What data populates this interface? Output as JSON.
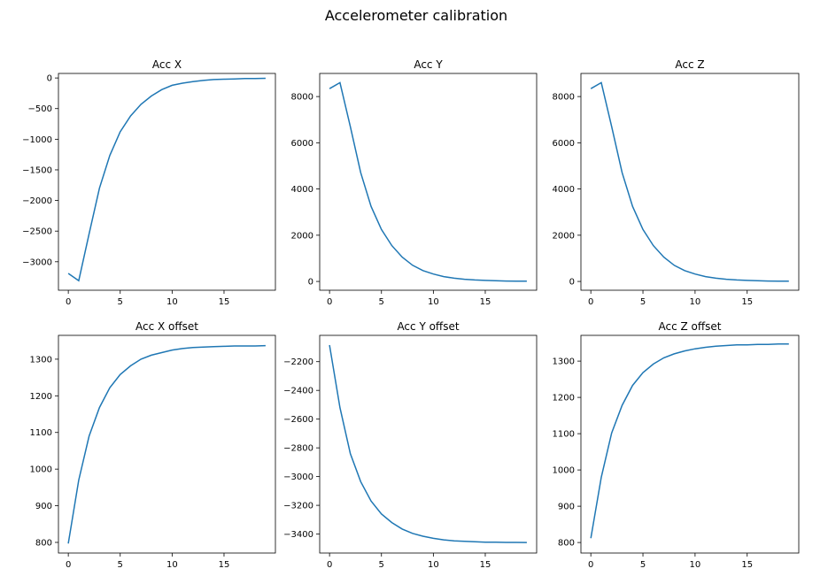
{
  "chart_data": {
    "title": "Accelerometer calibration",
    "line_color": "#1f77b4",
    "subplots": [
      {
        "type": "line",
        "title": "Acc X",
        "xlim": [
          -0.95,
          19.95
        ],
        "ylim": [
          -3465,
          74
        ],
        "xticks": [
          0,
          5,
          10,
          15
        ],
        "yticks": [
          0,
          -500,
          -1000,
          -1500,
          -2000,
          -2500,
          -3000
        ],
        "x": [
          0,
          1,
          2,
          3,
          4,
          5,
          6,
          7,
          8,
          9,
          10,
          11,
          12,
          13,
          14,
          15,
          16,
          17,
          18,
          19
        ],
        "y": [
          -3190,
          -3310,
          -2545,
          -1800,
          -1265,
          -880,
          -620,
          -430,
          -295,
          -190,
          -120,
          -85,
          -60,
          -40,
          -25,
          -20,
          -15,
          -10,
          -8,
          -5
        ]
      },
      {
        "type": "line",
        "title": "Acc Y",
        "xlim": [
          -0.95,
          19.95
        ],
        "ylim": [
          -380,
          9000
        ],
        "xticks": [
          0,
          5,
          10,
          15
        ],
        "yticks": [
          0,
          2000,
          4000,
          6000,
          8000
        ],
        "x": [
          0,
          1,
          2,
          3,
          4,
          5,
          6,
          7,
          8,
          9,
          10,
          11,
          12,
          13,
          14,
          15,
          16,
          17,
          18,
          19
        ],
        "y": [
          8340,
          8600,
          6700,
          4710,
          3250,
          2250,
          1550,
          1050,
          700,
          470,
          320,
          210,
          140,
          95,
          65,
          45,
          30,
          20,
          15,
          10
        ]
      },
      {
        "type": "line",
        "title": "Acc Z",
        "xlim": [
          -0.95,
          19.95
        ],
        "ylim": [
          -380,
          9000
        ],
        "xticks": [
          0,
          5,
          10,
          15
        ],
        "yticks": [
          0,
          2000,
          4000,
          6000,
          8000
        ],
        "x": [
          0,
          1,
          2,
          3,
          4,
          5,
          6,
          7,
          8,
          9,
          10,
          11,
          12,
          13,
          14,
          15,
          16,
          17,
          18,
          19
        ],
        "y": [
          8340,
          8600,
          6700,
          4710,
          3250,
          2250,
          1550,
          1050,
          700,
          470,
          320,
          210,
          140,
          95,
          65,
          45,
          30,
          20,
          15,
          10
        ]
      },
      {
        "type": "line",
        "title": "Acc X offset",
        "xlim": [
          -0.95,
          19.95
        ],
        "ylim": [
          771,
          1365
        ],
        "xticks": [
          0,
          5,
          10,
          15
        ],
        "yticks": [
          800,
          900,
          1000,
          1100,
          1200,
          1300
        ],
        "x": [
          0,
          1,
          2,
          3,
          4,
          5,
          6,
          7,
          8,
          9,
          10,
          11,
          12,
          13,
          14,
          15,
          16,
          17,
          18,
          19
        ],
        "y": [
          797,
          970,
          1090,
          1168,
          1222,
          1258,
          1282,
          1300,
          1311,
          1318,
          1325,
          1329,
          1332,
          1333,
          1334,
          1335,
          1336,
          1336,
          1336,
          1337
        ]
      },
      {
        "type": "line",
        "title": "Acc Y offset",
        "xlim": [
          -0.95,
          19.95
        ],
        "ylim": [
          -3532,
          -2017
        ],
        "xticks": [
          0,
          5,
          10,
          15
        ],
        "yticks": [
          -2200,
          -2400,
          -2600,
          -2800,
          -3000,
          -3200,
          -3400
        ],
        "x": [
          0,
          1,
          2,
          3,
          4,
          5,
          6,
          7,
          8,
          9,
          10,
          11,
          12,
          13,
          14,
          15,
          16,
          17,
          18,
          19
        ],
        "y": [
          -2085,
          -2520,
          -2840,
          -3035,
          -3170,
          -3260,
          -3320,
          -3365,
          -3395,
          -3415,
          -3430,
          -3440,
          -3447,
          -3451,
          -3454,
          -3456,
          -3457,
          -3458,
          -3458,
          -3459
        ]
      },
      {
        "type": "line",
        "title": "Acc Z offset",
        "xlim": [
          -0.95,
          19.95
        ],
        "ylim": [
          771,
          1371
        ],
        "xticks": [
          0,
          5,
          10,
          15
        ],
        "yticks": [
          800,
          900,
          1000,
          1100,
          1200,
          1300
        ],
        "x": [
          0,
          1,
          2,
          3,
          4,
          5,
          6,
          7,
          8,
          9,
          10,
          11,
          12,
          13,
          14,
          15,
          16,
          17,
          18,
          19
        ],
        "y": [
          812,
          980,
          1102,
          1178,
          1233,
          1268,
          1292,
          1309,
          1320,
          1328,
          1334,
          1338,
          1341,
          1343,
          1345,
          1345,
          1346,
          1346,
          1347,
          1347
        ]
      }
    ]
  }
}
